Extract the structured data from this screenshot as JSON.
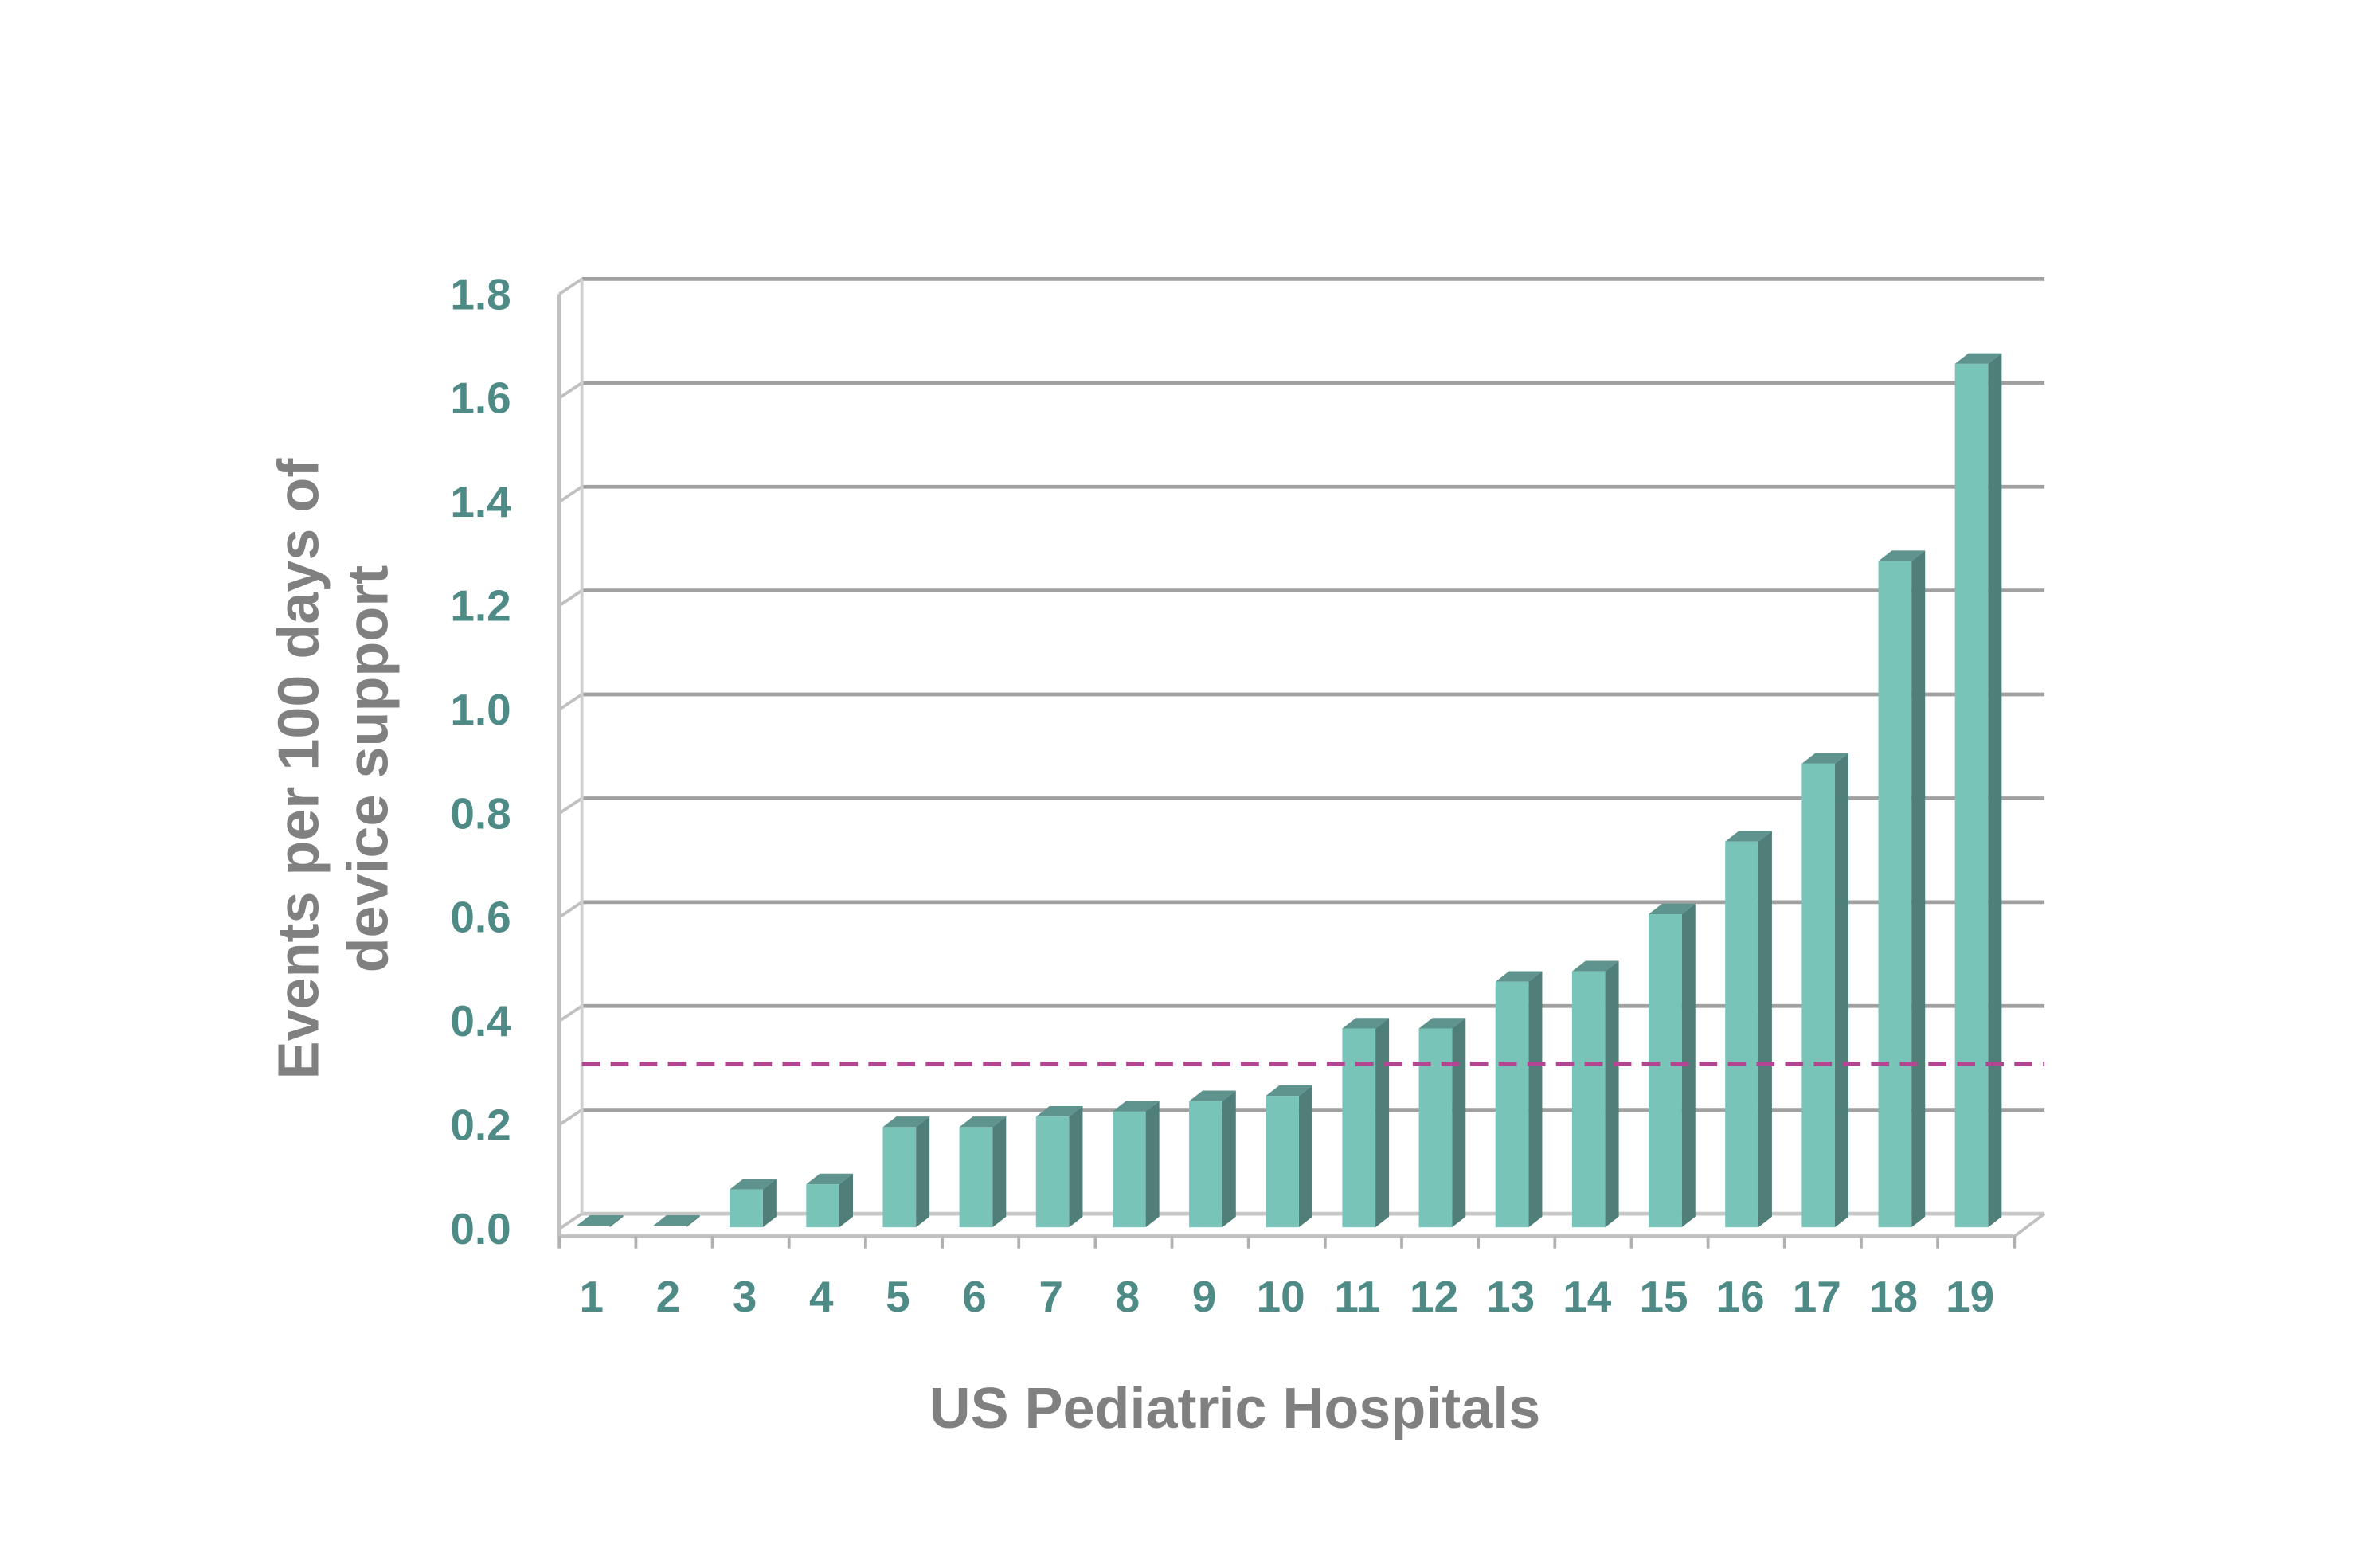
{
  "chart_data": {
    "type": "bar",
    "style": "3d-column",
    "title": "",
    "xlabel": "US Pediatric Hospitals",
    "ylabel_lines": [
      "Events per 100 days of",
      "device support"
    ],
    "categories": [
      "1",
      "2",
      "3",
      "4",
      "5",
      "6",
      "7",
      "8",
      "9",
      "10",
      "11",
      "12",
      "13",
      "14",
      "15",
      "16",
      "17",
      "18",
      "19"
    ],
    "values": [
      0.0,
      0.0,
      0.07,
      0.08,
      0.19,
      0.19,
      0.21,
      0.22,
      0.24,
      0.25,
      0.38,
      0.38,
      0.47,
      0.49,
      0.6,
      0.74,
      0.89,
      1.28,
      1.66
    ],
    "ylim": [
      0,
      1.8
    ],
    "yticks": [
      "0.0",
      "0.2",
      "0.4",
      "0.6",
      "0.8",
      "1.0",
      "1.2",
      "1.4",
      "1.6",
      "1.8"
    ],
    "ytick_values": [
      0,
      0.2,
      0.4,
      0.6,
      0.8,
      1.0,
      1.2,
      1.4,
      1.6,
      1.8
    ],
    "reference_line": {
      "value": 0.3,
      "style": "dashed",
      "color": "#b0478f"
    },
    "grid": true,
    "legend": "none",
    "colors": {
      "bar_front": "#79c4b8",
      "bar_side": "#4f7f78",
      "bar_top": "#5e948d",
      "tick_text": "#4e8a86",
      "title_text": "#808080",
      "grid": "#a0a0a0"
    }
  }
}
